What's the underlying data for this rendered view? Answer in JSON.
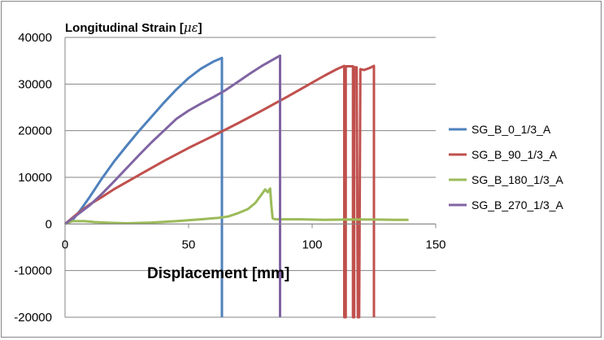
{
  "chart_data": {
    "type": "line",
    "ylabel": "Longitudinal  Strain  [",
    "ylabel_unit": "με",
    "ylabel_close": "]",
    "xlabel": "Displacement [mm]",
    "xlim": [
      0,
      150
    ],
    "ylim": [
      -20000,
      40000
    ],
    "x_ticks": [
      "0",
      "50",
      "100",
      "150"
    ],
    "y_ticks": [
      "-20000",
      "-10000",
      "0",
      "10000",
      "20000",
      "30000",
      "40000"
    ],
    "grid": true,
    "legend_position": "right",
    "series": [
      {
        "name": "SG_B_0_1/3_A",
        "color": "#4F81BD",
        "points": [
          [
            0,
            0
          ],
          [
            3,
            800
          ],
          [
            6,
            2800
          ],
          [
            10,
            5800
          ],
          [
            15,
            9800
          ],
          [
            20,
            13500
          ],
          [
            25,
            16800
          ],
          [
            30,
            20000
          ],
          [
            35,
            23000
          ],
          [
            40,
            26000
          ],
          [
            45,
            28800
          ],
          [
            50,
            31300
          ],
          [
            55,
            33300
          ],
          [
            60,
            34800
          ],
          [
            63.5,
            35600
          ],
          [
            63.5,
            -20000
          ]
        ]
      },
      {
        "name": "SG_B_90_1/3_A",
        "color": "#C0504D",
        "points": [
          [
            0,
            0
          ],
          [
            5,
            2200
          ],
          [
            10,
            4200
          ],
          [
            15,
            5800
          ],
          [
            20,
            7500
          ],
          [
            30,
            10500
          ],
          [
            40,
            13500
          ],
          [
            50,
            16300
          ],
          [
            60,
            18900
          ],
          [
            70,
            21600
          ],
          [
            80,
            24400
          ],
          [
            90,
            27300
          ],
          [
            100,
            30300
          ],
          [
            105,
            31800
          ],
          [
            110,
            33200
          ],
          [
            113,
            33900
          ],
          [
            113,
            -20000
          ],
          [
            113.6,
            -20000
          ],
          [
            113.6,
            33800
          ],
          [
            116.5,
            33800
          ],
          [
            116.5,
            -20000
          ],
          [
            117,
            -20000
          ],
          [
            117,
            33600
          ],
          [
            118,
            33600
          ],
          [
            118.5,
            -20000
          ],
          [
            119,
            -20000
          ],
          [
            119.5,
            33200
          ],
          [
            121,
            33000
          ],
          [
            122,
            33200
          ],
          [
            123.5,
            33500
          ],
          [
            125,
            33900
          ],
          [
            125,
            -20000
          ]
        ]
      },
      {
        "name": "SG_B_180_1/3_A",
        "color": "#9BBB59",
        "points": [
          [
            0,
            0
          ],
          [
            3,
            600
          ],
          [
            8,
            600
          ],
          [
            12,
            400
          ],
          [
            18,
            250
          ],
          [
            25,
            150
          ],
          [
            35,
            300
          ],
          [
            45,
            600
          ],
          [
            55,
            1000
          ],
          [
            62,
            1300
          ],
          [
            66,
            1600
          ],
          [
            70,
            2300
          ],
          [
            74,
            3200
          ],
          [
            77,
            4500
          ],
          [
            79.5,
            6300
          ],
          [
            81,
            7400
          ],
          [
            82,
            6800
          ],
          [
            83,
            7600
          ],
          [
            83.5,
            4000
          ],
          [
            84,
            1200
          ],
          [
            85,
            1000
          ],
          [
            95,
            1000
          ],
          [
            105,
            900
          ],
          [
            115,
            950
          ],
          [
            125,
            950
          ],
          [
            133,
            900
          ],
          [
            139,
            900
          ]
        ]
      },
      {
        "name": "SG_B_270_1/3_A",
        "color": "#8064A2",
        "points": [
          [
            0,
            0
          ],
          [
            5,
            2000
          ],
          [
            10,
            4000
          ],
          [
            15,
            6500
          ],
          [
            20,
            9200
          ],
          [
            25,
            12000
          ],
          [
            30,
            14800
          ],
          [
            35,
            17500
          ],
          [
            40,
            20000
          ],
          [
            45,
            22500
          ],
          [
            50,
            24300
          ],
          [
            55,
            25800
          ],
          [
            60,
            27200
          ],
          [
            65,
            28700
          ],
          [
            70,
            30500
          ],
          [
            75,
            32300
          ],
          [
            80,
            34000
          ],
          [
            85,
            35500
          ],
          [
            87,
            36100
          ],
          [
            87,
            -20000
          ]
        ]
      }
    ]
  }
}
